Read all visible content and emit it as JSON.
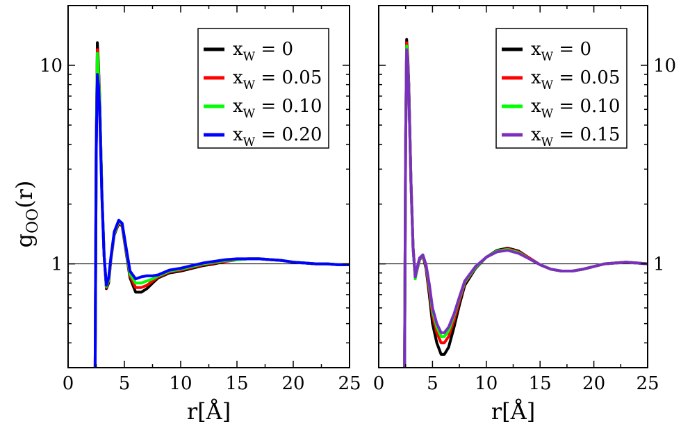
{
  "figure": {
    "ylabel_main": "g",
    "ylabel_sub": "OO",
    "ylabel_tail": "(r)"
  },
  "chart_data": [
    {
      "type": "line",
      "panel": "left",
      "xlabel": "r[Å]",
      "ylabel": "g_OO(r)",
      "xlim": [
        0,
        25
      ],
      "ylim": [
        0.3,
        20
      ],
      "y_scale": "log",
      "x_ticks": [
        0,
        5,
        10,
        15,
        20,
        25
      ],
      "y_tick_labels": [
        {
          "value": 1,
          "label": "1"
        },
        {
          "value": 10,
          "label": "10"
        }
      ],
      "y_label_side": "left",
      "reference_line": 1,
      "legend_position": "top-right",
      "series": [
        {
          "name": "x_W = 0",
          "color": "#000000",
          "x": [
            2.4,
            2.5,
            2.6,
            2.7,
            2.8,
            3.0,
            3.2,
            3.4,
            3.6,
            3.8,
            4.1,
            4.5,
            4.8,
            5.1,
            5.5,
            6.0,
            6.5,
            7.0,
            7.5,
            8.0,
            9.0,
            10.0,
            11.0,
            12.0,
            13.0,
            14.0,
            15.0,
            16.0,
            17.0,
            18.0,
            19.0,
            20.0,
            21.0,
            22.0,
            23.0,
            24.0,
            25.0
          ],
          "y": [
            0.3,
            4.0,
            13.0,
            10.0,
            7.0,
            2.3,
            1.1,
            0.75,
            0.8,
            1.05,
            1.4,
            1.6,
            1.55,
            1.2,
            0.85,
            0.72,
            0.72,
            0.75,
            0.8,
            0.85,
            0.9,
            0.92,
            0.95,
            0.98,
            1.0,
            1.03,
            1.05,
            1.06,
            1.06,
            1.05,
            1.04,
            1.02,
            1.01,
            1.0,
            1.0,
            0.99,
            0.99
          ]
        },
        {
          "name": "x_W = 0.05",
          "color": "#ff0000",
          "x": [
            2.4,
            2.5,
            2.6,
            2.7,
            2.8,
            3.0,
            3.2,
            3.4,
            3.6,
            3.8,
            4.1,
            4.5,
            4.8,
            5.1,
            5.5,
            6.0,
            6.5,
            7.0,
            7.5,
            8.0,
            9.0,
            10.0,
            11.0,
            12.0,
            13.0,
            14.0,
            15.0,
            16.0,
            17.0,
            18.0,
            19.0,
            20.0,
            21.0,
            22.0,
            23.0,
            24.0,
            25.0
          ],
          "y": [
            0.3,
            4.0,
            12.0,
            9.5,
            6.8,
            2.3,
            1.1,
            0.76,
            0.82,
            1.06,
            1.42,
            1.62,
            1.56,
            1.22,
            0.87,
            0.76,
            0.76,
            0.78,
            0.82,
            0.86,
            0.91,
            0.93,
            0.96,
            0.99,
            1.01,
            1.03,
            1.05,
            1.06,
            1.06,
            1.05,
            1.04,
            1.02,
            1.01,
            1.0,
            1.0,
            0.99,
            0.99
          ]
        },
        {
          "name": "x_W = 0.10",
          "color": "#00ff00",
          "x": [
            2.4,
            2.5,
            2.6,
            2.7,
            2.8,
            3.0,
            3.2,
            3.4,
            3.6,
            3.8,
            4.1,
            4.5,
            4.8,
            5.1,
            5.5,
            6.0,
            6.5,
            7.0,
            7.5,
            8.0,
            9.0,
            10.0,
            11.0,
            12.0,
            13.0,
            14.0,
            15.0,
            16.0,
            17.0,
            18.0,
            19.0,
            20.0,
            21.0,
            22.0,
            23.0,
            24.0,
            25.0
          ],
          "y": [
            0.3,
            4.0,
            11.5,
            9.0,
            6.6,
            2.3,
            1.1,
            0.77,
            0.83,
            1.07,
            1.43,
            1.64,
            1.58,
            1.24,
            0.89,
            0.8,
            0.8,
            0.82,
            0.84,
            0.87,
            0.92,
            0.94,
            0.97,
            1.0,
            1.02,
            1.04,
            1.05,
            1.06,
            1.06,
            1.05,
            1.04,
            1.02,
            1.01,
            1.0,
            1.0,
            0.99,
            0.99
          ]
        },
        {
          "name": "x_W = 0.20",
          "color": "#0000ff",
          "x": [
            2.4,
            2.5,
            2.6,
            2.7,
            2.8,
            3.0,
            3.2,
            3.4,
            3.6,
            3.8,
            4.1,
            4.5,
            4.8,
            5.1,
            5.5,
            6.0,
            6.5,
            7.0,
            7.5,
            8.0,
            9.0,
            10.0,
            11.0,
            12.0,
            13.0,
            14.0,
            15.0,
            16.0,
            17.0,
            18.0,
            19.0,
            20.0,
            21.0,
            22.0,
            23.0,
            24.0,
            25.0
          ],
          "y": [
            0.3,
            3.8,
            9.0,
            8.0,
            6.0,
            2.2,
            1.1,
            0.78,
            0.85,
            1.08,
            1.45,
            1.66,
            1.6,
            1.26,
            0.92,
            0.84,
            0.86,
            0.87,
            0.87,
            0.88,
            0.93,
            0.95,
            0.98,
            1.01,
            1.03,
            1.05,
            1.06,
            1.06,
            1.06,
            1.05,
            1.04,
            1.02,
            1.01,
            1.0,
            1.0,
            0.99,
            0.99
          ]
        }
      ]
    },
    {
      "type": "line",
      "panel": "right",
      "xlabel": "r[Å]",
      "ylabel": "",
      "xlim": [
        0,
        25
      ],
      "ylim": [
        0.3,
        20
      ],
      "y_scale": "log",
      "x_ticks": [
        0,
        5,
        10,
        15,
        20,
        25
      ],
      "y_tick_labels": [
        {
          "value": 1,
          "label": "1"
        },
        {
          "value": 10,
          "label": "10"
        }
      ],
      "y_label_side": "right",
      "reference_line": 1,
      "legend_position": "top-right",
      "series": [
        {
          "name": "x_W = 0",
          "color": "#000000",
          "x": [
            2.4,
            2.5,
            2.6,
            2.7,
            2.8,
            3.0,
            3.2,
            3.4,
            3.6,
            3.8,
            4.1,
            4.4,
            4.7,
            5.0,
            5.4,
            5.8,
            6.1,
            6.5,
            7.0,
            7.5,
            8.0,
            9.0,
            10.0,
            11.0,
            12.0,
            13.0,
            14.0,
            15.0,
            16.0,
            17.0,
            18.0,
            19.0,
            20.0,
            21.0,
            22.0,
            23.0,
            24.0,
            25.0
          ],
          "y": [
            0.3,
            4.0,
            13.5,
            11.0,
            8.0,
            2.6,
            1.2,
            0.85,
            0.95,
            1.05,
            1.1,
            0.95,
            0.7,
            0.5,
            0.4,
            0.35,
            0.35,
            0.38,
            0.48,
            0.62,
            0.78,
            0.95,
            1.08,
            1.17,
            1.2,
            1.16,
            1.07,
            0.99,
            0.94,
            0.92,
            0.92,
            0.94,
            0.97,
            1.0,
            1.01,
            1.02,
            1.01,
            1.0
          ]
        },
        {
          "name": "x_W = 0.05",
          "color": "#ff0000",
          "x": [
            2.4,
            2.5,
            2.6,
            2.7,
            2.8,
            3.0,
            3.2,
            3.4,
            3.6,
            3.8,
            4.1,
            4.4,
            4.7,
            5.0,
            5.4,
            5.8,
            6.1,
            6.5,
            7.0,
            7.5,
            8.0,
            9.0,
            10.0,
            11.0,
            12.0,
            13.0,
            14.0,
            15.0,
            16.0,
            17.0,
            18.0,
            19.0,
            20.0,
            21.0,
            22.0,
            23.0,
            24.0,
            25.0
          ],
          "y": [
            0.3,
            4.0,
            13.0,
            10.5,
            7.8,
            2.6,
            1.2,
            0.86,
            0.96,
            1.06,
            1.1,
            0.97,
            0.74,
            0.55,
            0.45,
            0.4,
            0.4,
            0.43,
            0.52,
            0.65,
            0.8,
            0.96,
            1.08,
            1.16,
            1.19,
            1.15,
            1.07,
            0.99,
            0.94,
            0.92,
            0.92,
            0.94,
            0.97,
            1.0,
            1.01,
            1.02,
            1.01,
            1.0
          ]
        },
        {
          "name": "x_W = 0.10",
          "color": "#00ff00",
          "x": [
            2.4,
            2.5,
            2.6,
            2.7,
            2.8,
            3.0,
            3.2,
            3.4,
            3.6,
            3.8,
            4.1,
            4.4,
            4.7,
            5.0,
            5.4,
            5.8,
            6.1,
            6.5,
            7.0,
            7.5,
            8.0,
            9.0,
            10.0,
            11.0,
            12.0,
            13.0,
            14.0,
            15.0,
            16.0,
            17.0,
            18.0,
            19.0,
            20.0,
            21.0,
            22.0,
            23.0,
            24.0,
            25.0
          ],
          "y": [
            0.3,
            4.0,
            12.5,
            10.2,
            7.6,
            2.6,
            1.2,
            0.84,
            0.96,
            1.06,
            1.11,
            0.98,
            0.77,
            0.58,
            0.48,
            0.43,
            0.43,
            0.46,
            0.55,
            0.67,
            0.81,
            0.96,
            1.08,
            1.16,
            1.18,
            1.14,
            1.06,
            0.99,
            0.94,
            0.92,
            0.92,
            0.94,
            0.97,
            1.0,
            1.01,
            1.02,
            1.01,
            1.0
          ]
        },
        {
          "name": "x_W = 0.15",
          "color": "#7b2fbe",
          "x": [
            2.4,
            2.5,
            2.6,
            2.7,
            2.8,
            3.0,
            3.2,
            3.4,
            3.6,
            3.8,
            4.1,
            4.4,
            4.7,
            5.0,
            5.4,
            5.8,
            6.1,
            6.5,
            7.0,
            7.5,
            8.0,
            9.0,
            10.0,
            11.0,
            12.0,
            13.0,
            14.0,
            15.0,
            16.0,
            17.0,
            18.0,
            19.0,
            20.0,
            21.0,
            22.0,
            23.0,
            24.0,
            25.0
          ],
          "y": [
            0.3,
            4.0,
            12.0,
            10.0,
            7.4,
            2.6,
            1.2,
            0.86,
            0.97,
            1.07,
            1.11,
            0.99,
            0.79,
            0.6,
            0.5,
            0.45,
            0.45,
            0.48,
            0.56,
            0.68,
            0.82,
            0.97,
            1.08,
            1.15,
            1.17,
            1.13,
            1.06,
            0.99,
            0.94,
            0.92,
            0.92,
            0.94,
            0.97,
            1.0,
            1.01,
            1.02,
            1.01,
            1.0
          ]
        }
      ]
    }
  ]
}
